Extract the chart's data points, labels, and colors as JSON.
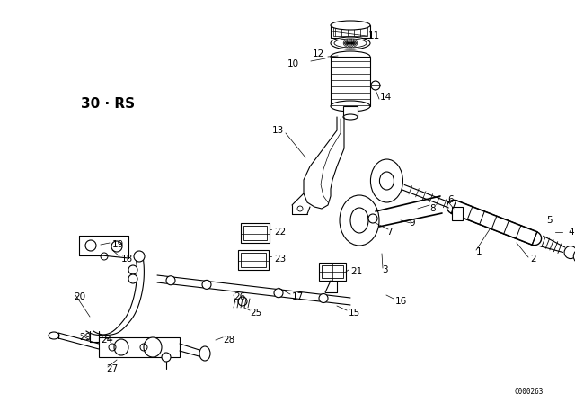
{
  "bg_color": "#ffffff",
  "diagram_label": "30-RS",
  "catalog_number": "C000263",
  "figsize": [
    6.4,
    4.48
  ],
  "dpi": 100
}
